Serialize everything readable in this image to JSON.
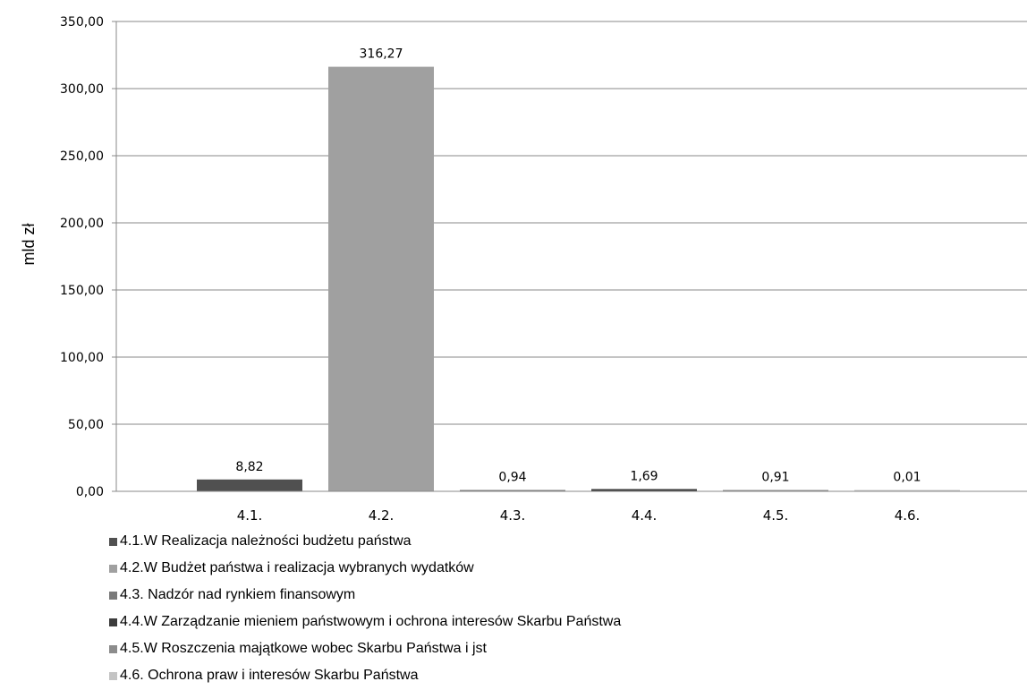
{
  "chart_data": {
    "type": "bar",
    "title": "",
    "xlabel": "",
    "ylabel": "mld zł",
    "ylim": [
      0,
      350
    ],
    "yticks": [
      "0,00",
      "50,00",
      "100,00",
      "150,00",
      "200,00",
      "250,00",
      "300,00",
      "350,00"
    ],
    "grid": true,
    "legend_position": "bottom",
    "categories": [
      "4.1.",
      "4.2.",
      "4.3.",
      "4.4.",
      "4.5.",
      "4.6."
    ],
    "values": [
      8.82,
      316.27,
      0.94,
      1.69,
      0.91,
      0.01
    ],
    "value_labels": [
      "8,82",
      "316,27",
      "0,94",
      "1,69",
      "0,91",
      "0,01"
    ],
    "colors": [
      "#505050",
      "#a0a0a0",
      "#7a7a7a",
      "#3c3c3c",
      "#8c8c8c",
      "#c4c4c4"
    ],
    "legend": [
      "4.1.W Realizacja należności budżetu państwa",
      "4.2.W Budżet państwa i realizacja wybranych wydatków",
      "4.3. Nadzór nad rynkiem finansowym",
      "4.4.W Zarządzanie mieniem państwowym i ochrona interesów Skarbu Państwa",
      "4.5.W Roszczenia majątkowe wobec Skarbu Państwa i jst",
      "4.6. Ochrona praw i interesów Skarbu Państwa"
    ]
  }
}
